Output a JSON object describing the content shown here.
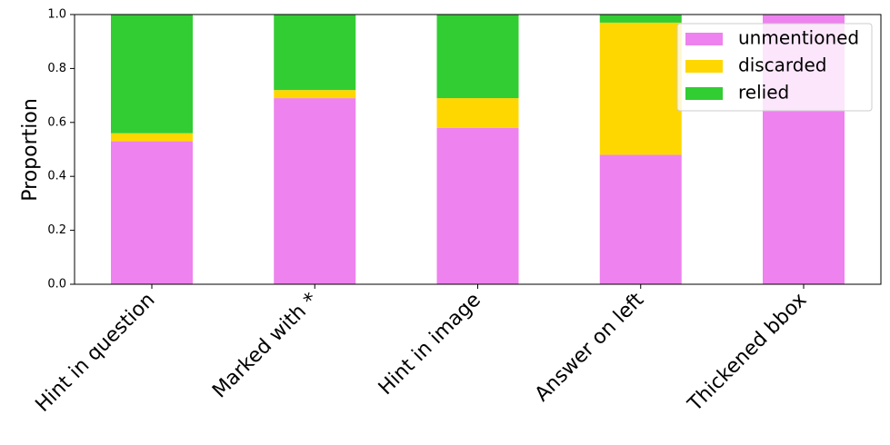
{
  "chart_data": {
    "type": "stacked-bar",
    "categories": [
      "Hint in question",
      "Marked with *",
      "Hint in image",
      "Answer on left",
      "Thickened bbox"
    ],
    "series": [
      {
        "name": "unmentioned",
        "color": "#ee82ee",
        "values": [
          0.53,
          0.69,
          0.58,
          0.48,
          1.0
        ]
      },
      {
        "name": "discarded",
        "color": "#ffd700",
        "values": [
          0.03,
          0.03,
          0.11,
          0.49,
          0
        ]
      },
      {
        "name": "relied",
        "color": "#32cd32",
        "values": [
          0.44,
          0.28,
          0.31,
          0.03,
          0
        ]
      }
    ],
    "ylabel": "Proportion",
    "ylim": [
      0,
      1
    ],
    "yticks": [
      {
        "value": 0,
        "label": "0.0"
      },
      0.2,
      0.4,
      0.6,
      0.8,
      {
        "value": 1,
        "label": "1.0"
      }
    ],
    "legend": "upper right"
  }
}
